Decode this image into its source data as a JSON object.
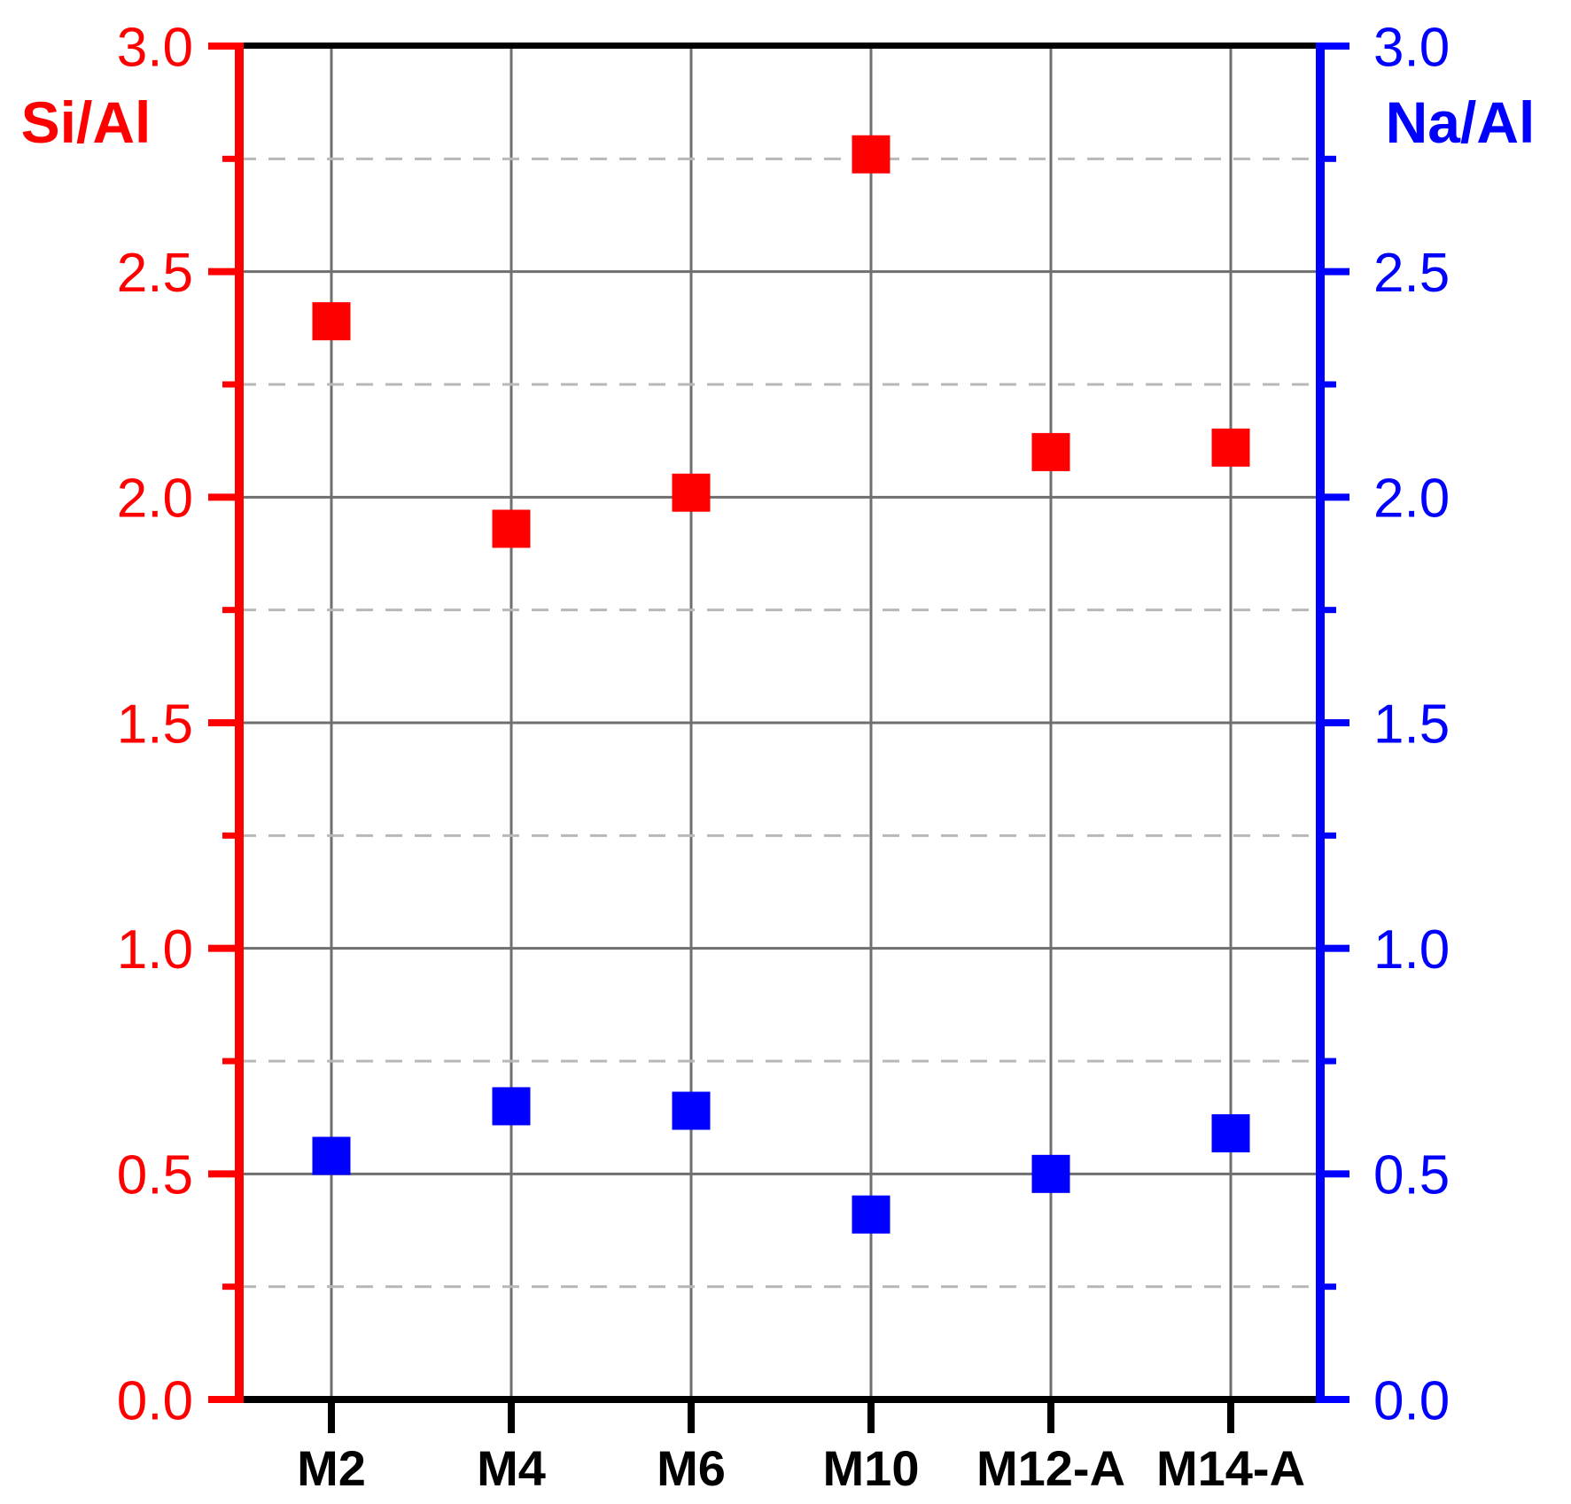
{
  "chart_data": {
    "type": "scatter",
    "marker": "square",
    "categories": [
      "M2",
      "M4",
      "M6",
      "M10",
      "M12-A",
      "M14-A"
    ],
    "series": [
      {
        "name": "Si/Al",
        "axis": "left",
        "color": "#ff0000",
        "values": [
          2.39,
          1.93,
          2.01,
          2.76,
          2.1,
          2.11
        ]
      },
      {
        "name": "Na/Al",
        "axis": "right",
        "color": "#0000ff",
        "values": [
          0.54,
          0.65,
          0.64,
          0.41,
          0.5,
          0.59
        ]
      }
    ],
    "left_axis": {
      "label": "Si/Al",
      "color": "#ff0000",
      "min": 0.0,
      "max": 3.0,
      "major_step": 0.5,
      "minor_step": 0.25,
      "ticks": [
        "0.0",
        "0.5",
        "1.0",
        "1.5",
        "2.0",
        "2.5",
        "3.0"
      ]
    },
    "right_axis": {
      "label": "Na/Al",
      "color": "#0000ff",
      "min": 0.0,
      "max": 3.0,
      "major_step": 0.5,
      "minor_step": 0.25,
      "ticks": [
        "0.0",
        "0.5",
        "1.0",
        "1.5",
        "2.0",
        "2.5",
        "3.0"
      ]
    },
    "grid": {
      "vertical_on": true,
      "major_color": "#6f6f6f",
      "minor_color": "#b8b8b8",
      "minor_dashed": true
    },
    "spines": {
      "top_color": "#000000",
      "bottom_color": "#000000"
    },
    "x_label_color": "#000000"
  }
}
